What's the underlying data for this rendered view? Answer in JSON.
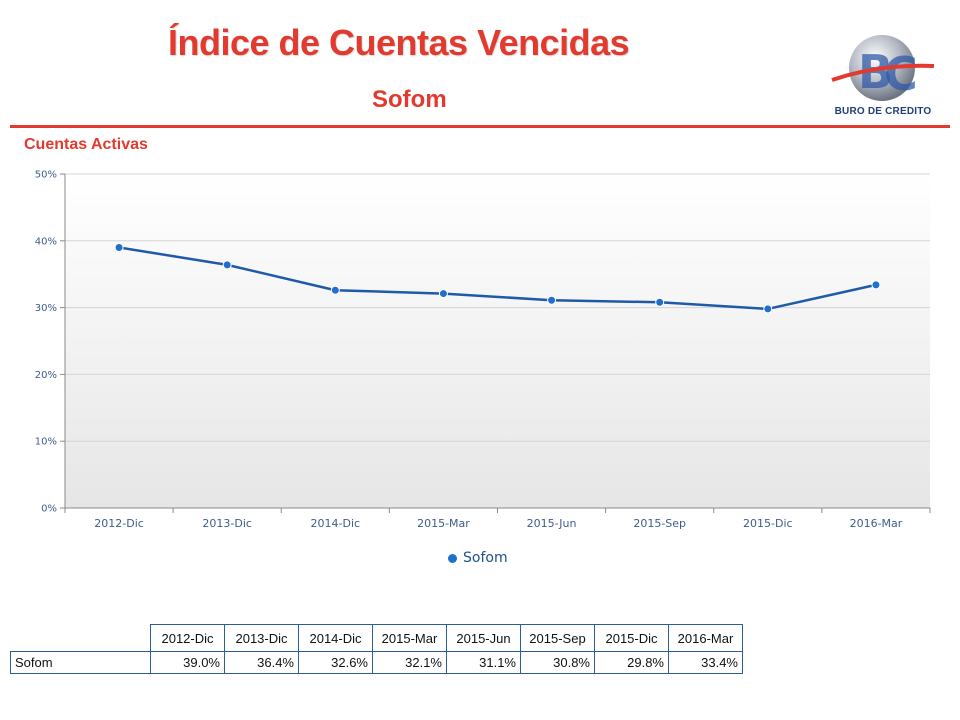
{
  "header": {
    "title": "Índice de Cuentas Vencidas",
    "subtitle": "Sofom",
    "logo_text": "BURO DE CREDITO"
  },
  "colors": {
    "accent": "#e23a2e",
    "series": "#1f5aa8",
    "marker": "#1f6fce",
    "table_border": "#2b5c9e"
  },
  "chart_data": {
    "type": "line",
    "title": "Cuentas Activas",
    "categories": [
      "2012-Dic",
      "2013-Dic",
      "2014-Dic",
      "2015-Mar",
      "2015-Jun",
      "2015-Sep",
      "2015-Dic",
      "2016-Mar"
    ],
    "series": [
      {
        "name": "Sofom",
        "values": [
          39.0,
          36.4,
          32.6,
          32.1,
          31.1,
          30.8,
          29.8,
          33.4
        ]
      }
    ],
    "ylim": [
      0,
      50
    ],
    "yticks": [
      0,
      10,
      20,
      30,
      40,
      50
    ],
    "ytick_labels": [
      "0%",
      "10%",
      "20%",
      "30%",
      "40%",
      "50%"
    ],
    "grid": true,
    "legend": "bottom-center"
  },
  "table": {
    "columns": [
      "2012-Dic",
      "2013-Dic",
      "2014-Dic",
      "2015-Mar",
      "2015-Jun",
      "2015-Sep",
      "2015-Dic",
      "2016-Mar"
    ],
    "rows": [
      {
        "label": "Sofom",
        "values": [
          "39.0%",
          "36.4%",
          "32.6%",
          "32.1%",
          "31.1%",
          "30.8%",
          "29.8%",
          "33.4%"
        ]
      }
    ]
  }
}
